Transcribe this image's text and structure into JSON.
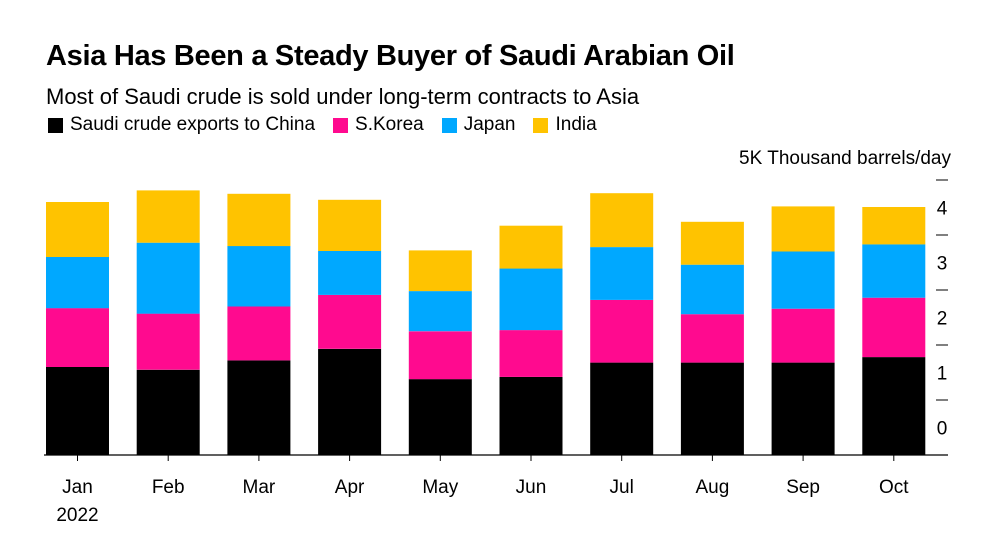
{
  "chart_data": {
    "type": "bar",
    "stacked": true,
    "title": "Asia Has Been a Steady Buyer of Saudi Arabian Oil",
    "subtitle": "Most of Saudi crude is sold under long-term contracts to Asia",
    "unit_label": "5K Thousand barrels/day",
    "categories": [
      "Jan",
      "Feb",
      "Mar",
      "Apr",
      "May",
      "Jun",
      "Jul",
      "Aug",
      "Sep",
      "Oct"
    ],
    "year_label": "2022",
    "ylim": [
      0,
      5
    ],
    "yticks": [
      0,
      1,
      2,
      3,
      4
    ],
    "legend_position": "top-left",
    "series": [
      {
        "name": "Saudi crude exports to China",
        "color": "#000000",
        "values": [
          1.6,
          1.55,
          1.72,
          1.93,
          1.38,
          1.42,
          1.68,
          1.68,
          1.68,
          1.78
        ]
      },
      {
        "name": "S.Korea",
        "color": "#ff0a8f",
        "values": [
          1.07,
          1.02,
          0.98,
          0.98,
          0.87,
          0.85,
          1.14,
          0.88,
          0.98,
          1.08
        ]
      },
      {
        "name": "Japan",
        "color": "#00a8ff",
        "values": [
          0.93,
          1.29,
          1.1,
          0.8,
          0.73,
          1.12,
          0.96,
          0.9,
          1.04,
          0.97
        ]
      },
      {
        "name": "India",
        "color": "#ffc300",
        "values": [
          1.0,
          0.95,
          0.95,
          0.93,
          0.74,
          0.78,
          0.98,
          0.78,
          0.82,
          0.68
        ]
      }
    ]
  }
}
